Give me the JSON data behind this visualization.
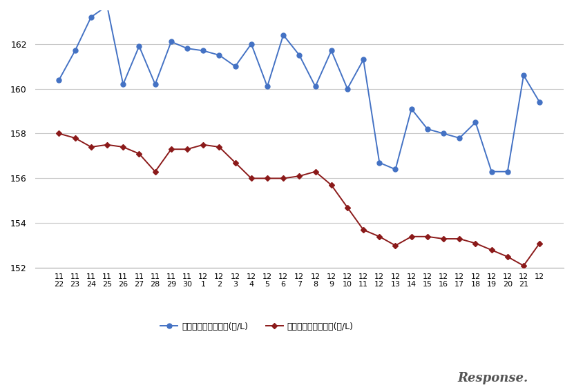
{
  "x_labels_top": [
    "11",
    "11",
    "11",
    "11",
    "11",
    "11",
    "11",
    "11",
    "11",
    "12",
    "12",
    "12",
    "12",
    "12",
    "12",
    "12",
    "12",
    "12",
    "12",
    "12",
    "12",
    "12",
    "12",
    "12",
    "12",
    "12",
    "12",
    "12",
    "12",
    "12",
    "12"
  ],
  "x_labels_bot": [
    "22",
    "23",
    "24",
    "25",
    "26",
    "27",
    "28",
    "29",
    "30",
    "1",
    "2",
    "3",
    "4",
    "5",
    "6",
    "7",
    "8",
    "9",
    "10",
    "11",
    "12",
    "13",
    "14",
    "15",
    "16",
    "17",
    "18",
    "19",
    "20",
    "21",
    ""
  ],
  "blue_values": [
    160.4,
    161.7,
    163.2,
    163.7,
    160.2,
    161.9,
    160.2,
    162.1,
    161.8,
    161.7,
    161.5,
    161.0,
    162.0,
    160.1,
    162.4,
    161.5,
    160.1,
    161.7,
    160.0,
    161.3,
    156.7,
    156.4,
    159.1,
    158.2,
    158.0,
    157.8,
    158.5,
    156.3,
    156.3,
    160.6,
    159.4
  ],
  "red_values": [
    158.0,
    157.8,
    157.4,
    157.5,
    157.4,
    157.1,
    156.3,
    157.3,
    157.3,
    157.5,
    157.4,
    156.7,
    156.0,
    156.0,
    156.0,
    156.1,
    156.3,
    155.7,
    154.7,
    153.7,
    153.4,
    153.0,
    153.4,
    153.4,
    153.3,
    153.3,
    153.1,
    152.8,
    152.5,
    152.1,
    153.1
  ],
  "blue_color": "#4472C4",
  "red_color": "#8B1A1A",
  "ylim_min": 152,
  "ylim_max": 163.5,
  "yticks": [
    152,
    154,
    156,
    158,
    160,
    162
  ],
  "legend_blue": "レギュラー看板価格(円/L)",
  "legend_red": "レギュラー実売価格(円/L)",
  "bg_color": "#FFFFFF",
  "grid_color": "#C8C8C8"
}
